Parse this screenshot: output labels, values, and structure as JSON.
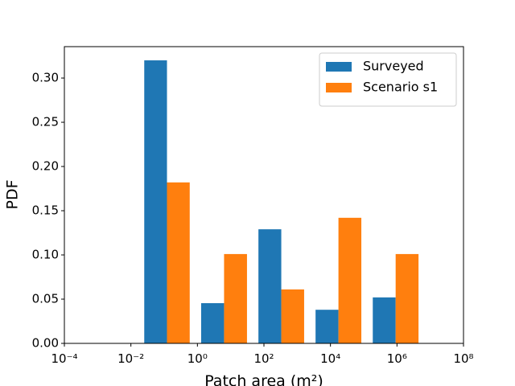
{
  "chart_data": {
    "type": "histogram",
    "xlabel": "Patch area (m²)",
    "ylabel": "PDF",
    "xscale": "log",
    "bins": [
      0.017,
      0.87,
      46,
      2400,
      126000,
      6600000
    ],
    "series": [
      {
        "name": "Surveyed",
        "color": "#1f77b4",
        "values": [
          0.32,
          0.0455,
          0.129,
          0.038,
          0.052
        ]
      },
      {
        "name": "Scenario s1",
        "color": "#ff7f0e",
        "values": [
          0.182,
          0.101,
          0.061,
          0.142,
          0.101
        ]
      }
    ],
    "xlim": [
      0.0001,
      100000000
    ],
    "xticks": [
      {
        "value": 0.0001,
        "label": "10⁻⁴"
      },
      {
        "value": 0.01,
        "label": "10⁻²"
      },
      {
        "value": 1,
        "label": "10⁰"
      },
      {
        "value": 100,
        "label": "10²"
      },
      {
        "value": 10000,
        "label": "10⁴"
      },
      {
        "value": 1000000,
        "label": "10⁶"
      },
      {
        "value": 100000000,
        "label": "10⁸"
      }
    ],
    "ylim": [
      0,
      0.3355
    ],
    "yticks": [
      {
        "value": 0,
        "label": "0.00"
      },
      {
        "value": 0.05,
        "label": "0.05"
      },
      {
        "value": 0.1,
        "label": "0.10"
      },
      {
        "value": 0.15,
        "label": "0.15"
      },
      {
        "value": 0.2,
        "label": "0.20"
      },
      {
        "value": 0.25,
        "label": "0.25"
      },
      {
        "value": 0.3,
        "label": "0.30"
      }
    ],
    "legend": "upper right"
  }
}
